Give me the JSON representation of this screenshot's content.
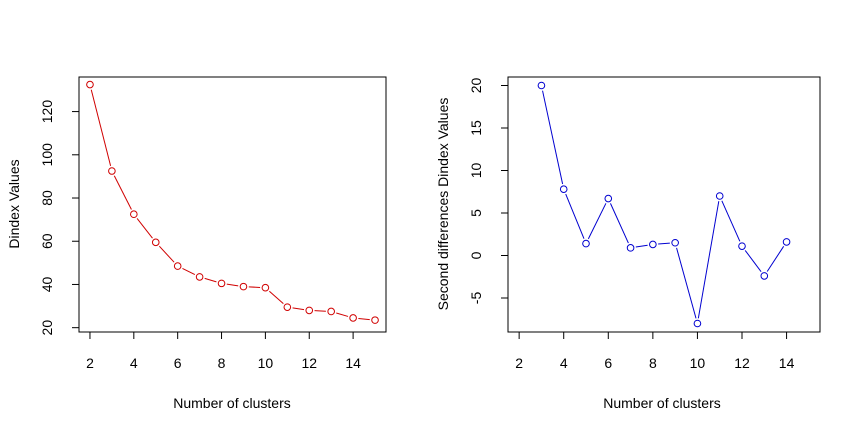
{
  "chart_data": [
    {
      "type": "line",
      "xlabel": "Number of clusters",
      "ylabel": "Dindex Values",
      "xlim": [
        1.5,
        15.5
      ],
      "ylim": [
        18,
        136
      ],
      "xticks": [
        2,
        4,
        6,
        8,
        10,
        12,
        14
      ],
      "yticks": [
        20,
        40,
        60,
        80,
        100,
        120
      ],
      "color": "#d00000",
      "x": [
        2,
        3,
        4,
        5,
        6,
        7,
        8,
        9,
        10,
        11,
        12,
        13,
        14,
        15
      ],
      "y": [
        132.5,
        92.5,
        72.5,
        59.5,
        48.5,
        43.5,
        40.5,
        39,
        38.5,
        29.5,
        28,
        27.5,
        24.5,
        23.5
      ]
    },
    {
      "type": "line",
      "xlabel": "Number of clusters",
      "ylabel": "Second differences Dindex Values",
      "xlim": [
        1.5,
        15.5
      ],
      "ylim": [
        -9,
        21
      ],
      "xticks": [
        2,
        4,
        6,
        8,
        10,
        12,
        14
      ],
      "yticks": [
        -5,
        0,
        5,
        10,
        15,
        20
      ],
      "color": "#0000d0",
      "x": [
        3,
        4,
        5,
        6,
        7,
        8,
        9,
        10,
        11,
        12,
        13,
        14
      ],
      "y": [
        20,
        7.8,
        1.4,
        6.7,
        0.9,
        1.3,
        1.5,
        -8,
        7,
        1.1,
        -2.4,
        1.6
      ]
    }
  ]
}
